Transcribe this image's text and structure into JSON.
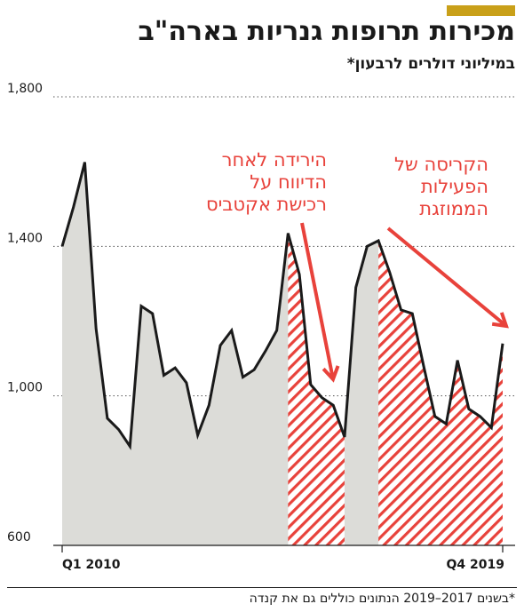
{
  "header": {
    "title": "מכירות תרופות גנריות בארה\"ב",
    "subtitle": "במיליוני דולרים לרבעון*"
  },
  "colors": {
    "accent": "#c9a019",
    "line": "#1a1a1a",
    "area": "#dcdcd8",
    "highlight": "#e8423b"
  },
  "chart_data": {
    "type": "area",
    "x_start_label": "Q1 2010",
    "x_end_label": "Q4 2019",
    "y_ticks": [
      600,
      1000,
      1400,
      1800
    ],
    "y_tick_labels": [
      "600",
      "1,000",
      "1,400",
      "1,800"
    ],
    "ylim": [
      600,
      1800
    ],
    "grid": true,
    "x": [
      "Q1 2010",
      "Q2 2010",
      "Q3 2010",
      "Q4 2010",
      "Q1 2011",
      "Q2 2011",
      "Q3 2011",
      "Q4 2011",
      "Q1 2012",
      "Q2 2012",
      "Q3 2012",
      "Q4 2012",
      "Q1 2013",
      "Q2 2013",
      "Q3 2013",
      "Q4 2013",
      "Q1 2014",
      "Q2 2014",
      "Q3 2014",
      "Q4 2014",
      "Q1 2015",
      "Q2 2015",
      "Q3 2015",
      "Q4 2015",
      "Q1 2016",
      "Q2 2016",
      "Q3 2016",
      "Q4 2016",
      "Q1 2017",
      "Q2 2017",
      "Q3 2017",
      "Q4 2017",
      "Q1 2018",
      "Q2 2018",
      "Q3 2018",
      "Q4 2018",
      "Q1 2019",
      "Q2 2019",
      "Q3 2019",
      "Q4 2019"
    ],
    "values": [
      1400,
      1505,
      1625,
      1180,
      940,
      910,
      865,
      1240,
      1220,
      1055,
      1075,
      1035,
      895,
      975,
      1135,
      1175,
      1050,
      1070,
      1120,
      1175,
      1435,
      1325,
      1030,
      995,
      975,
      890,
      1290,
      1400,
      1415,
      1330,
      1230,
      1220,
      1080,
      945,
      925,
      1095,
      965,
      945,
      915,
      1140
    ],
    "shaded_ranges": [
      {
        "from_index": 20,
        "to_index": 25
      },
      {
        "from_index": 28,
        "to_index": 39
      }
    ],
    "annotations": [
      {
        "lines": [
          "הירידה לאחר",
          "הדיווח על",
          "רכישת אקטביס"
        ],
        "arrow_to_index": 24
      },
      {
        "lines": [
          "הקריסה של",
          "הפעילות",
          "הממוזגת"
        ],
        "arrow_to_index": 39
      }
    ]
  },
  "footnote": "*בשנים 2017–2019 הנתונים כוללים גם את קנדה"
}
